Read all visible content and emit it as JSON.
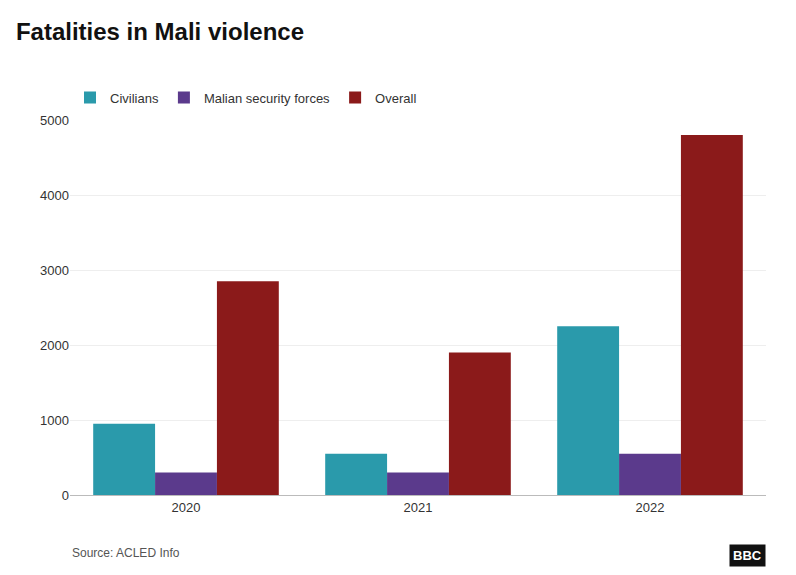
{
  "chart_data": {
    "type": "bar",
    "title": "Fatalities in Mali violence",
    "categories": [
      "2020",
      "2021",
      "2022"
    ],
    "series": [
      {
        "name": "Civilians",
        "color": "#2a9aab",
        "values": [
          950,
          550,
          2250
        ]
      },
      {
        "name": "Malian security forces",
        "color": "#5b3a8c",
        "values": [
          300,
          300,
          550
        ]
      },
      {
        "name": "Overall",
        "color": "#8b1a1a",
        "values": [
          2850,
          1900,
          4800
        ]
      }
    ],
    "ylim": [
      0,
      5000
    ],
    "yticks": [
      0,
      1000,
      2000,
      3000,
      4000,
      5000
    ],
    "grid": true,
    "legend": "upper left",
    "annotations": [
      "Source: ACLED Info",
      "BBC"
    ]
  }
}
